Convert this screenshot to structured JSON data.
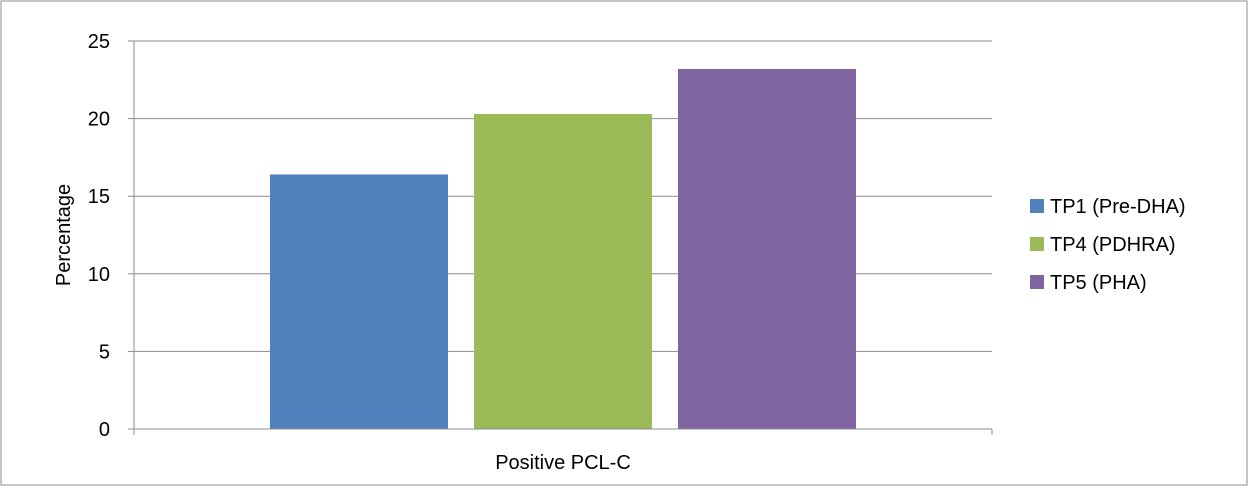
{
  "chart_data": {
    "type": "bar",
    "categories": [
      "Positive PCL-C"
    ],
    "series": [
      {
        "name": "TP1 (Pre-DHA)",
        "values": [
          16.4
        ],
        "color": "#4f81bd"
      },
      {
        "name": "TP4 (PDHRA)",
        "values": [
          20.3
        ],
        "color": "#9bbb59"
      },
      {
        "name": "TP5 (PHA)",
        "values": [
          23.2
        ],
        "color": "#8064a2"
      }
    ],
    "title": "",
    "xlabel": "",
    "ylabel": "Percentage",
    "ylim": [
      0,
      25
    ],
    "yticks": [
      0,
      5,
      10,
      15,
      20,
      25
    ],
    "grid": true,
    "legend_position": "right"
  }
}
